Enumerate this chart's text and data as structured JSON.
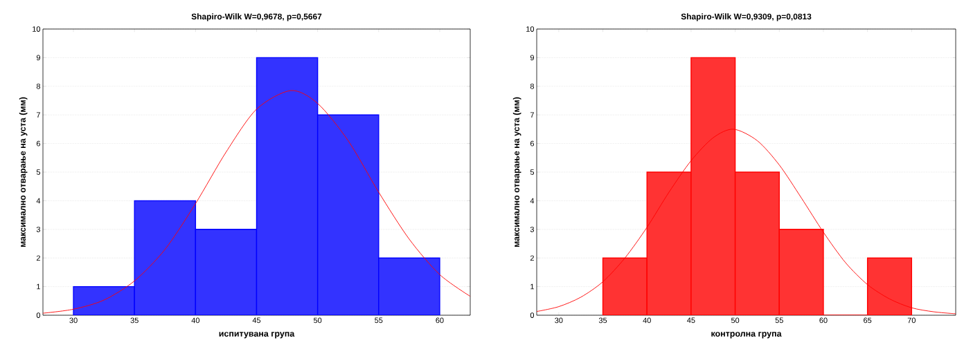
{
  "chart_data": [
    {
      "type": "histogram",
      "title": "Shapiro-Wilk W=0,9678, p=0,5667",
      "xlabel": "испитувана група",
      "ylabel": "максимално отварање на уста (мм)",
      "bins": [
        30,
        35,
        40,
        45,
        50,
        55,
        60
      ],
      "values": [
        1,
        4,
        3,
        9,
        7,
        2
      ],
      "color": "#0000ff",
      "xlim": [
        27.5,
        62.5
      ],
      "ylim": [
        0,
        10
      ],
      "xticks": [
        30,
        35,
        40,
        45,
        50,
        55,
        60
      ],
      "yticks": [
        0,
        1,
        2,
        3,
        4,
        5,
        6,
        7,
        8,
        9,
        10
      ],
      "grid": "y",
      "series": [
        {
          "type": "line",
          "color": "#ff0000",
          "x": [
            27.5,
            30,
            32.5,
            35,
            37.5,
            40,
            42.5,
            45,
            47.8,
            50,
            52.5,
            55,
            57.5,
            60,
            62.5
          ],
          "values": [
            0.07,
            0.21,
            0.53,
            1.2,
            2.3,
            3.9,
            5.7,
            7.2,
            7.85,
            7.4,
            6.1,
            4.3,
            2.66,
            1.42,
            0.66
          ]
        }
      ]
    },
    {
      "type": "histogram",
      "title": "Shapiro-Wilk W=0,9309, p=0,0813",
      "xlabel": "контролна група",
      "ylabel": "максимално отварање на уста (мм)",
      "bins": [
        35,
        40,
        45,
        50,
        55,
        60,
        65,
        70
      ],
      "values": [
        2,
        5,
        9,
        5,
        3,
        0,
        2
      ],
      "color": "#ff0000",
      "xlim": [
        27.5,
        75
      ],
      "ylim": [
        0,
        10
      ],
      "xticks": [
        30,
        35,
        40,
        45,
        50,
        55,
        60,
        65,
        70
      ],
      "yticks": [
        0,
        1,
        2,
        3,
        4,
        5,
        6,
        7,
        8,
        9,
        10
      ],
      "grid": "y",
      "series": [
        {
          "type": "line",
          "color": "#ff0000",
          "x": [
            27.5,
            30,
            32.5,
            35,
            37.5,
            40,
            42.5,
            45,
            47.5,
            49.8,
            52.5,
            55,
            57.5,
            60,
            62.5,
            65,
            67.5,
            70,
            72.5,
            75
          ],
          "values": [
            0.13,
            0.3,
            0.63,
            1.17,
            2.0,
            3.07,
            4.3,
            5.4,
            6.2,
            6.5,
            6.1,
            5.25,
            4.1,
            2.9,
            1.84,
            1.07,
            0.57,
            0.26,
            0.12,
            0.05
          ]
        }
      ]
    }
  ]
}
